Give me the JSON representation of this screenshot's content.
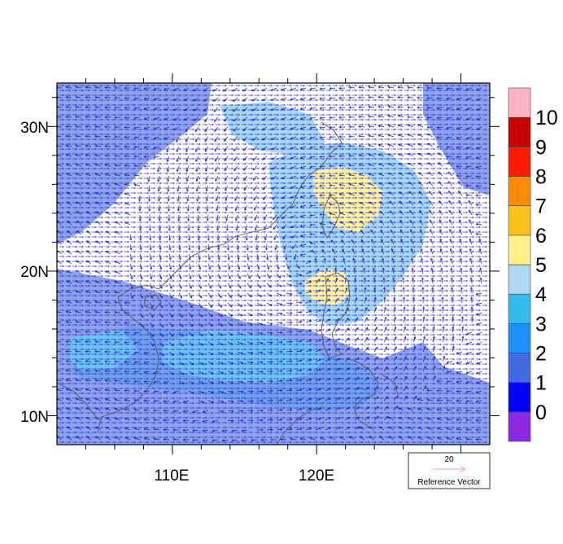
{
  "map": {
    "x_axis": {
      "tick_labels": [
        "110E",
        "120E"
      ],
      "range_deg": [
        102,
        132
      ]
    },
    "y_axis": {
      "tick_labels": [
        "10N",
        "20N",
        "30N"
      ],
      "range_deg": [
        8,
        33
      ]
    }
  },
  "colorbar": {
    "levels": [
      "0",
      "1",
      "2",
      "3",
      "4",
      "5",
      "6",
      "7",
      "8",
      "9",
      "10"
    ],
    "colors": [
      "#8a2be2",
      "#0000ff",
      "#4169e1",
      "#1e90ff",
      "#33bbee",
      "#b0d8f0",
      "#fff18a",
      "#ffc21a",
      "#ff8c00",
      "#ff1a00",
      "#c80000",
      "#ffb6c1"
    ]
  },
  "reference_vector": {
    "value": "20",
    "label": "Reference Vector",
    "color": "#ff9fb0"
  },
  "colors": {
    "vector": "#1a1acc",
    "coastline": "#555555",
    "frame": "#000000"
  }
}
